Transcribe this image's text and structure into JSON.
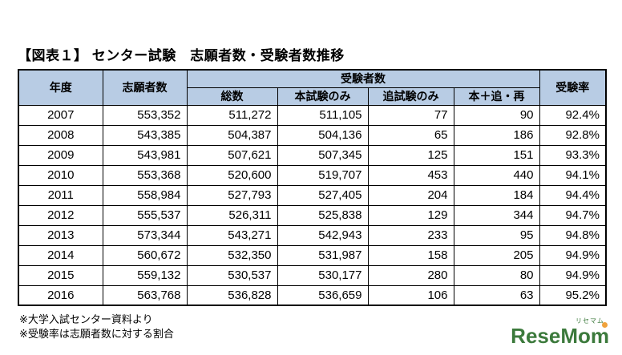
{
  "page": {
    "title": "【図表１】 センター試験　志願者数・受験者数推移",
    "notes": {
      "note1": "※大学入試センター資料より",
      "note2": "※受験率は志願者数に対する割合"
    },
    "logo": {
      "wordmark": "ReseMom",
      "ruby": "リセマム"
    },
    "colors": {
      "header_bg": "#b8cce4",
      "logo_green": "#3c7a3c",
      "logo_orange": "#f0a23c"
    }
  },
  "chart_data": {
    "type": "table",
    "title": "【図表１】 センター試験　志願者数・受験者数推移",
    "header": {
      "year": "年度",
      "applicants": "志願者数",
      "examinees_group": "受験者数",
      "sub": [
        "総数",
        "本試験のみ",
        "追試験のみ",
        "本＋追・再"
      ],
      "rate": "受験率"
    },
    "rows": [
      [
        "2007",
        "553,352",
        "511,272",
        "511,105",
        "77",
        "90",
        "92.4%"
      ],
      [
        "2008",
        "543,385",
        "504,387",
        "504,136",
        "65",
        "186",
        "92.8%"
      ],
      [
        "2009",
        "543,981",
        "507,621",
        "507,345",
        "125",
        "151",
        "93.3%"
      ],
      [
        "2010",
        "553,368",
        "520,600",
        "519,707",
        "453",
        "440",
        "94.1%"
      ],
      [
        "2011",
        "558,984",
        "527,793",
        "527,405",
        "204",
        "184",
        "94.4%"
      ],
      [
        "2012",
        "555,537",
        "526,311",
        "525,838",
        "129",
        "344",
        "94.7%"
      ],
      [
        "2013",
        "573,344",
        "543,271",
        "542,943",
        "233",
        "95",
        "94.8%"
      ],
      [
        "2014",
        "560,672",
        "532,350",
        "531,987",
        "158",
        "205",
        "94.9%"
      ],
      [
        "2015",
        "559,132",
        "530,537",
        "530,177",
        "280",
        "80",
        "94.9%"
      ],
      [
        "2016",
        "563,768",
        "536,828",
        "536,659",
        "106",
        "63",
        "95.2%"
      ]
    ]
  }
}
